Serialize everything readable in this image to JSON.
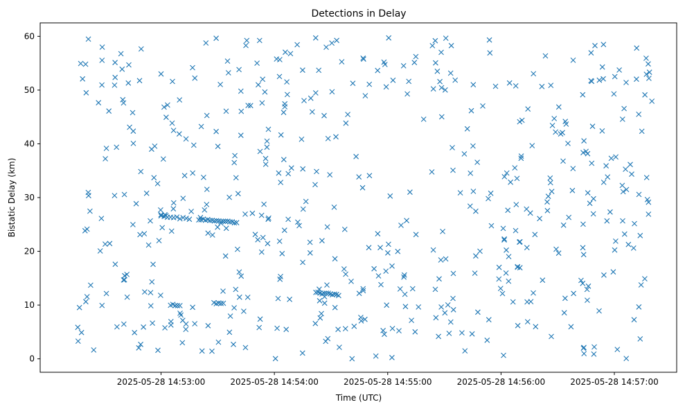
{
  "chart_data": {
    "type": "scatter",
    "title": "Detections in Delay",
    "xlabel": "Time (UTC)",
    "ylabel": "Bistatic Delay (km)",
    "marker": "x",
    "marker_color": "#1f77b4",
    "grid": false,
    "xlim": [
      "2025-05-28 14:51:56",
      "2025-05-28 14:57:33"
    ],
    "ylim": [
      -2.5,
      62.5
    ],
    "x_ticks": [
      "2025-05-28 14:53:00",
      "2025-05-28 14:54:00",
      "2025-05-28 14:55:00",
      "2025-05-28 14:56:00",
      "2025-05-28 14:57:00"
    ],
    "y_ticks": [
      0,
      10,
      20,
      30,
      40,
      50,
      60
    ],
    "clusters": [
      {
        "t_start": "2025-05-28 14:53:00",
        "t_end": "2025-05-28 14:53:15",
        "delay_start": 26.5,
        "delay_end": 26.0,
        "count": 10
      },
      {
        "t_start": "2025-05-28 14:53:20",
        "t_end": "2025-05-28 14:53:40",
        "delay_start": 25.9,
        "delay_end": 25.4,
        "count": 18
      },
      {
        "t_start": "2025-05-28 14:53:05",
        "t_end": "2025-05-28 14:53:10",
        "delay_start": 10.0,
        "delay_end": 10.0,
        "count": 5
      },
      {
        "t_start": "2025-05-28 14:53:28",
        "t_end": "2025-05-28 14:53:33",
        "delay_start": 10.3,
        "delay_end": 10.3,
        "count": 5
      },
      {
        "t_start": "2025-05-28 14:54:22",
        "t_end": "2025-05-28 14:54:34",
        "delay_start": 12.3,
        "delay_end": 11.9,
        "count": 12
      }
    ],
    "background_detections": 560
  }
}
